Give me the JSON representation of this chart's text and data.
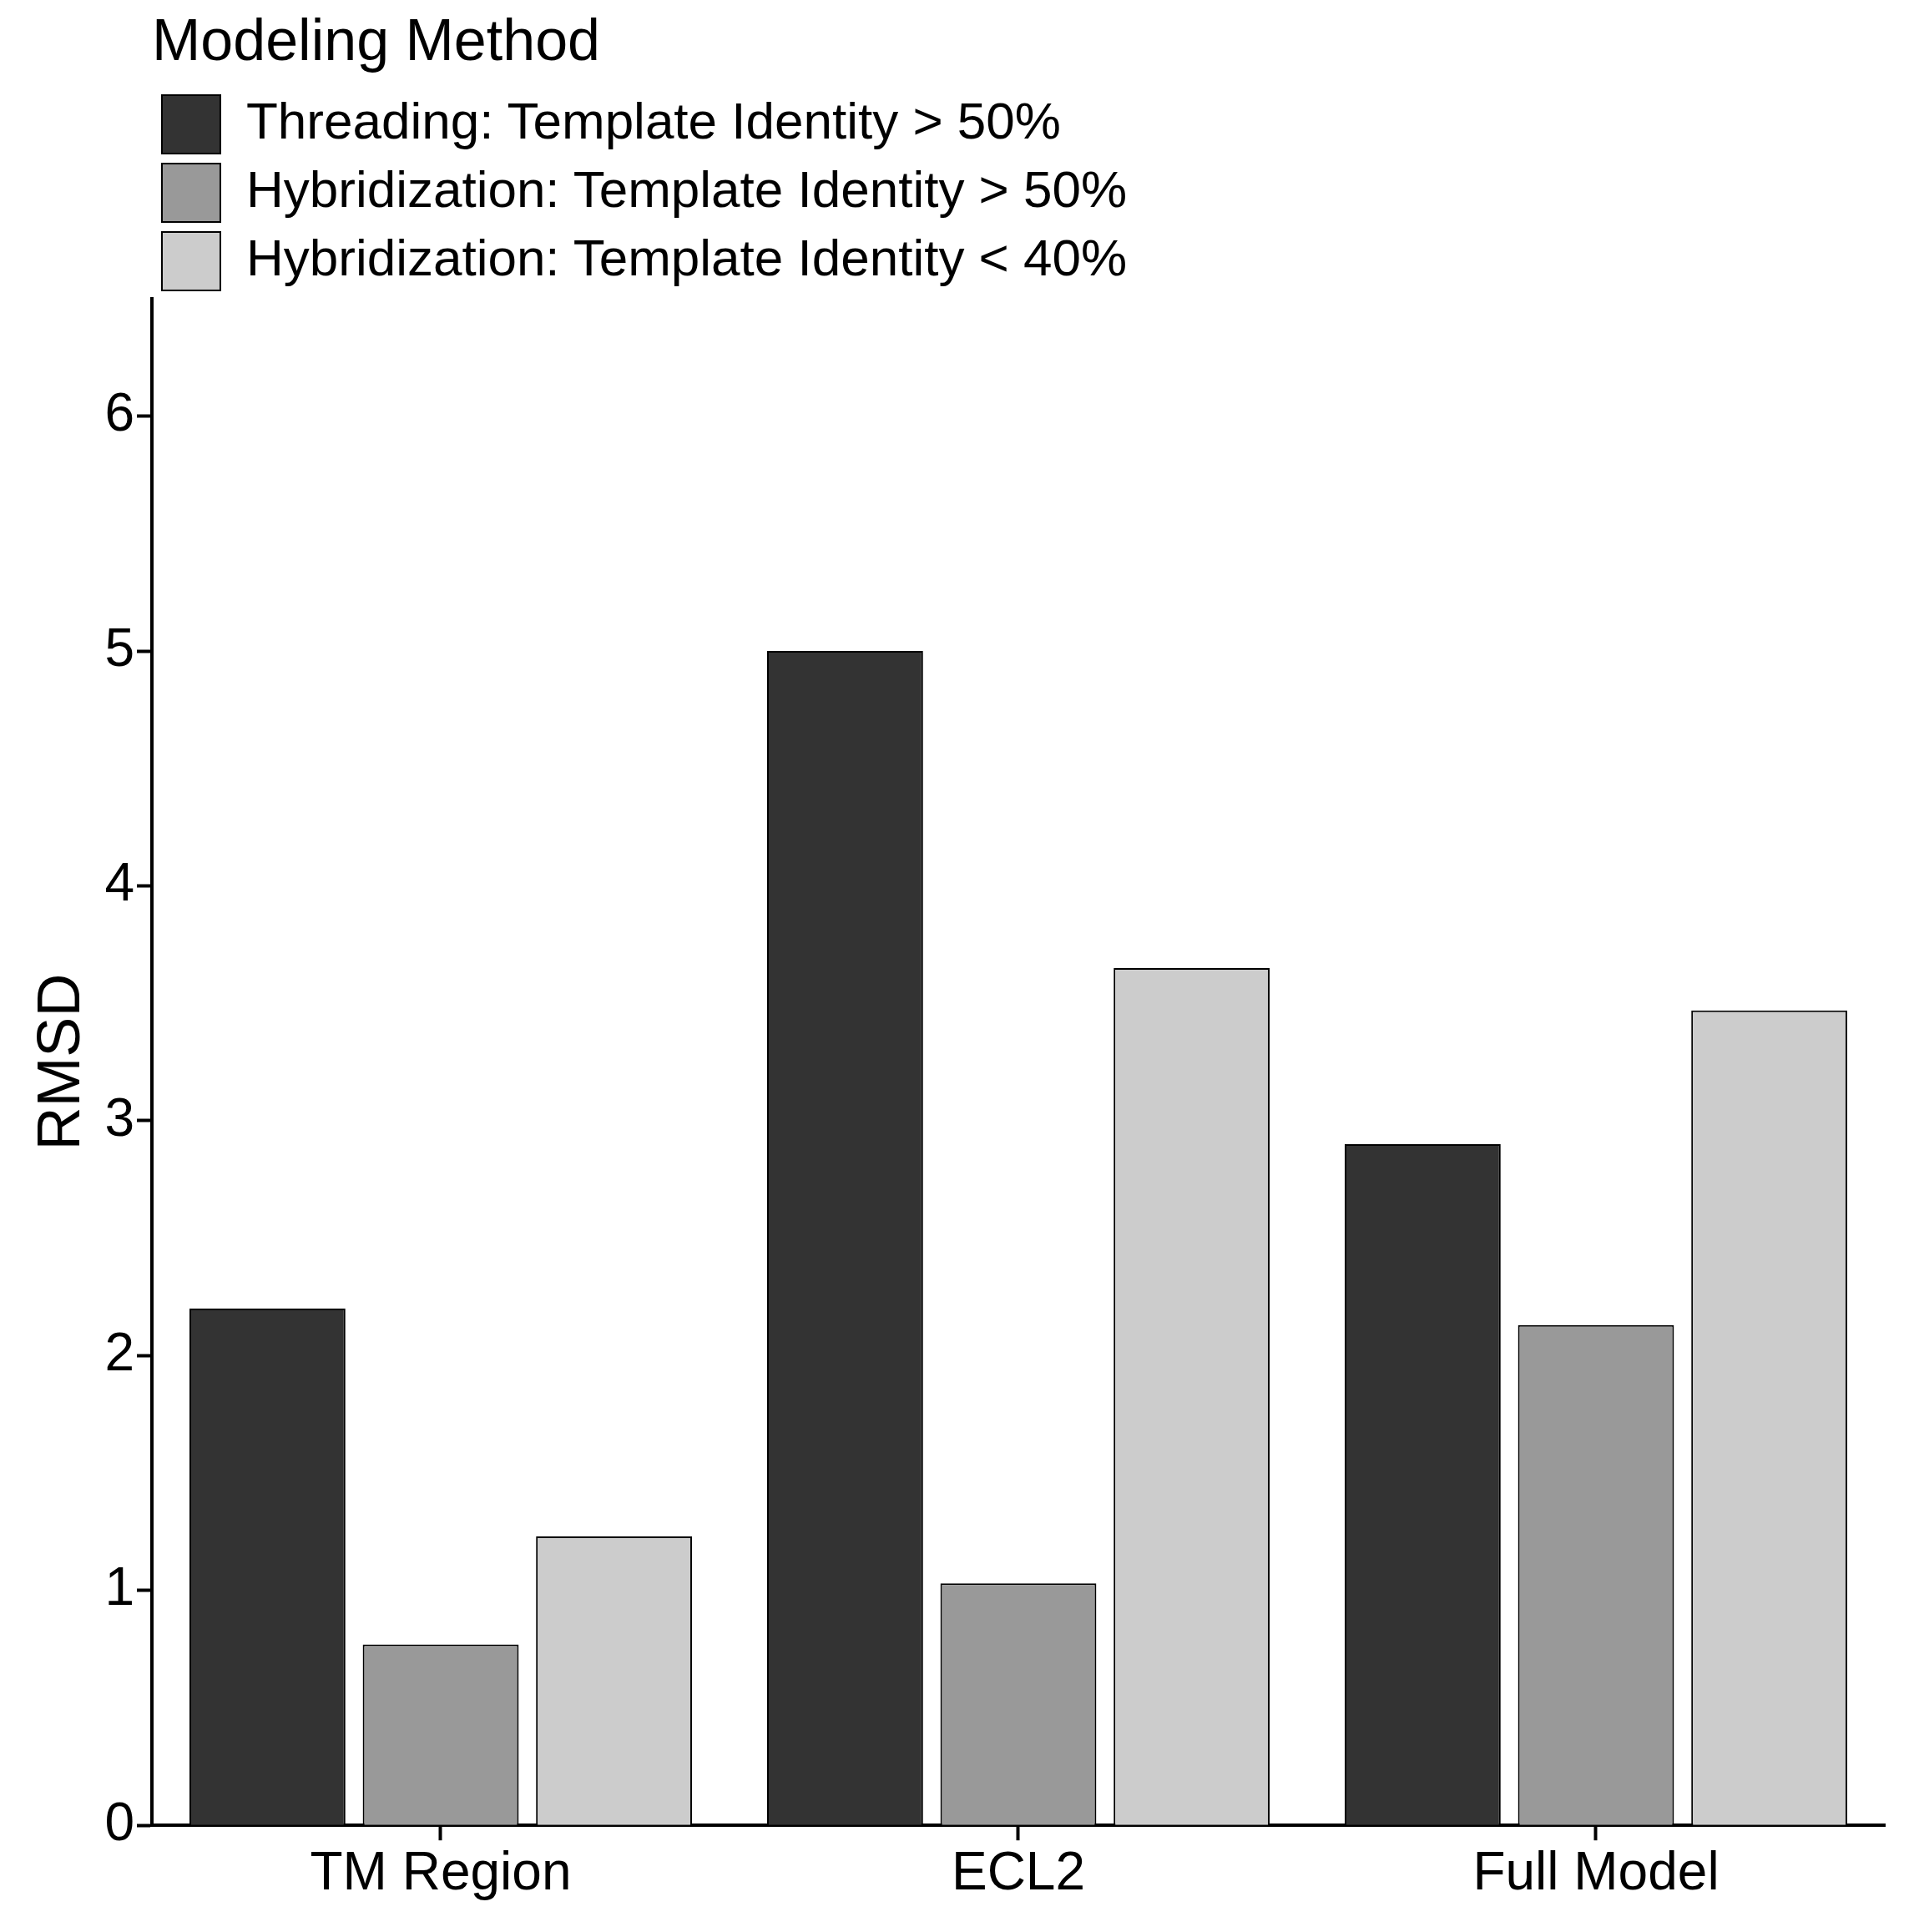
{
  "chart_data": {
    "type": "bar",
    "ylabel": "RMSD",
    "legend_title": "Modeling Method",
    "categories": [
      "TM Region",
      "ECL2",
      "Full Model"
    ],
    "series": [
      {
        "name": "Threading: Template Identity > 50%",
        "color": "#333333",
        "values": [
          2.2,
          5.0,
          2.9
        ]
      },
      {
        "name": "Hybridization: Template Identity > 50%",
        "color": "#999999",
        "values": [
          0.77,
          1.03,
          2.13
        ]
      },
      {
        "name": "Hybridization: Template Identity < 40%",
        "color": "#cccccc",
        "values": [
          1.23,
          3.65,
          3.47
        ]
      }
    ],
    "ylim": [
      0,
      6.5
    ],
    "yticks": [
      0,
      1,
      2,
      3,
      4,
      5,
      6
    ],
    "grid": false,
    "legend": "top left"
  }
}
